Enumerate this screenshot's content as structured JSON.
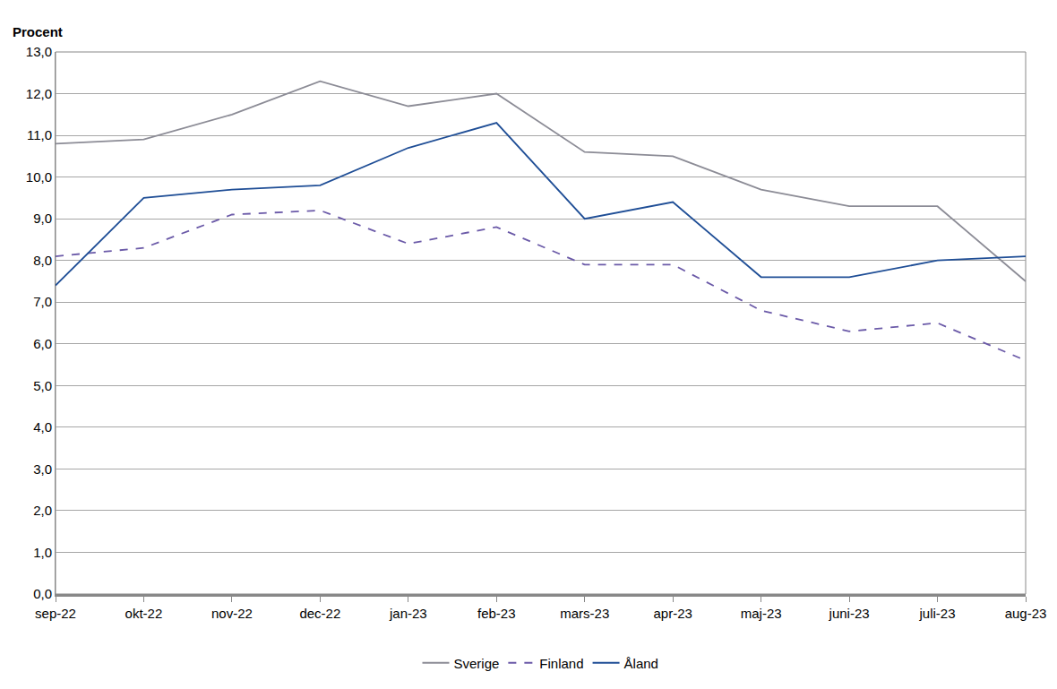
{
  "chart_data": {
    "type": "line",
    "ylabel": "Procent",
    "categories": [
      "sep-22",
      "okt-22",
      "nov-22",
      "dec-22",
      "jan-23",
      "feb-23",
      "mars-23",
      "apr-23",
      "maj-23",
      "juni-23",
      "juli-23",
      "aug-23"
    ],
    "series": [
      {
        "name": "Sverige",
        "color": "#8c8c96",
        "line_style": "solid",
        "values": [
          10.8,
          10.9,
          11.5,
          12.3,
          11.7,
          12.0,
          10.6,
          10.5,
          9.7,
          9.3,
          9.3,
          7.5
        ]
      },
      {
        "name": "Finland",
        "color": "#6b5aa8",
        "line_style": "dashed",
        "values": [
          8.1,
          8.3,
          9.1,
          9.2,
          8.4,
          8.8,
          7.9,
          7.9,
          6.8,
          6.3,
          6.5,
          5.6
        ]
      },
      {
        "name": "Åland",
        "color": "#1f4e96",
        "line_style": "solid",
        "values": [
          7.4,
          9.5,
          9.7,
          9.8,
          10.7,
          11.3,
          9.0,
          9.4,
          7.6,
          7.6,
          8.0,
          8.1
        ]
      }
    ],
    "ylim": [
      0,
      13
    ],
    "yticks": [
      {
        "value": 0,
        "label": "0,0"
      },
      {
        "value": 1,
        "label": "1,0"
      },
      {
        "value": 2,
        "label": "2,0"
      },
      {
        "value": 3,
        "label": "3,0"
      },
      {
        "value": 4,
        "label": "4,0"
      },
      {
        "value": 5,
        "label": "5,0"
      },
      {
        "value": 6,
        "label": "6,0"
      },
      {
        "value": 7,
        "label": "7,0"
      },
      {
        "value": 8,
        "label": "8,0"
      },
      {
        "value": 9,
        "label": "9,0"
      },
      {
        "value": 10,
        "label": "10,0"
      },
      {
        "value": 11,
        "label": "11,0"
      },
      {
        "value": 12,
        "label": "12,0"
      },
      {
        "value": 13,
        "label": "13,0"
      }
    ],
    "grid": true,
    "legend": "bottom"
  }
}
